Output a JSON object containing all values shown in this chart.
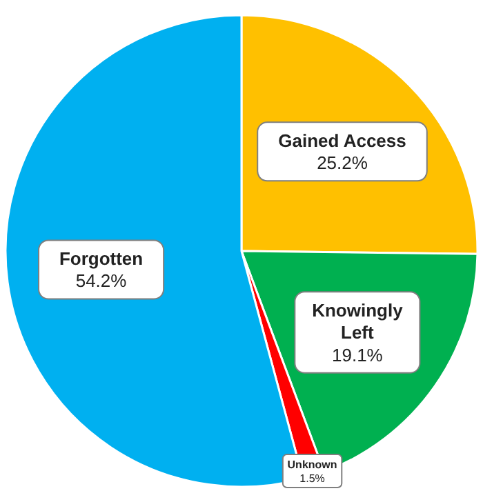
{
  "chart_data": {
    "type": "pie",
    "categories": [
      "Gained Access",
      "Knowingly Left",
      "Unknown",
      "Forgotten"
    ],
    "values": [
      25.2,
      19.1,
      1.5,
      54.2
    ],
    "colors": [
      "#ffc000",
      "#00b050",
      "#ff0000",
      "#00b0f0"
    ],
    "value_labels": [
      "25.2%",
      "19.1%",
      "1.5%",
      "54.2%"
    ]
  }
}
